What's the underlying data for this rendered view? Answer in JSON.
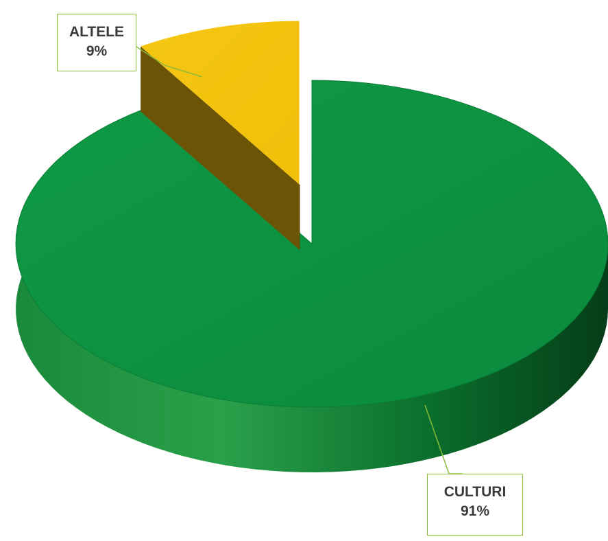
{
  "chart_data": {
    "type": "pie",
    "categories": [
      "ALTELE",
      "CULTURI"
    ],
    "values": [
      9,
      91
    ],
    "labels": [
      {
        "category": "ALTELE",
        "percent": "9%"
      },
      {
        "category": "CULTURI",
        "percent": "91%"
      }
    ],
    "colors": {
      "ALTELE": "#f5c612",
      "CULTURI": "#0a8d3e",
      "callout_border": "#8dbb3c"
    },
    "style": "3d-exploded"
  }
}
